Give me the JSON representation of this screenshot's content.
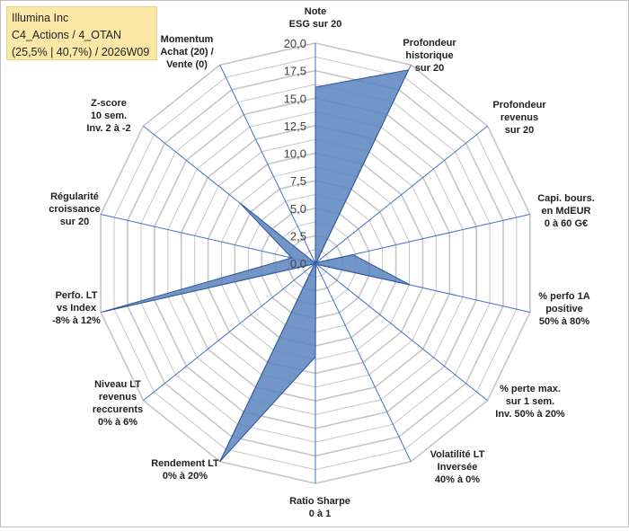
{
  "title_box": {
    "line1": "Illumina Inc",
    "line2": "C4_Actions / 4_OTAN",
    "line3": "(25,5% | 40,7%) / 2026W09"
  },
  "chart_data": {
    "type": "radar",
    "title": "",
    "range": [
      0,
      20
    ],
    "ticks": [
      "0,0",
      "2,5",
      "5,0",
      "7,5",
      "10,0",
      "12,5",
      "15,0",
      "17,5",
      "20,0"
    ],
    "grid": true,
    "legend": "none",
    "colors": {
      "fill": "#5b84c0",
      "stroke": "#2f5597",
      "grid": "#c6c6c6",
      "spoke": "#4472c4"
    },
    "axes": [
      {
        "lines": [
          "Note",
          "ESG sur 20"
        ]
      },
      {
        "lines": [
          "Profondeur",
          "historique",
          "sur 20"
        ]
      },
      {
        "lines": [
          "Profondeur",
          "revenus",
          "sur 20"
        ]
      },
      {
        "lines": [
          "Capi. bours.",
          "en MdEUR",
          "0 à 60 G€"
        ]
      },
      {
        "lines": [
          "% perfo 1A",
          "positive",
          "50% à 80%"
        ]
      },
      {
        "lines": [
          "% perte max.",
          "sur 1 sem.",
          "Inv. 50% à 20%"
        ]
      },
      {
        "lines": [
          "Volatilité LT",
          "Inversée",
          "40% à 0%"
        ]
      },
      {
        "lines": [
          "Ratio Sharpe",
          "0 à 1"
        ]
      },
      {
        "lines": [
          "Rendement LT",
          "0% à 20%"
        ]
      },
      {
        "lines": [
          "Niveau LT",
          "revenus",
          "reccurents",
          "0% à 6%"
        ]
      },
      {
        "lines": [
          "Perfo. LT",
          "vs Index",
          "-8% à 12%"
        ]
      },
      {
        "lines": [
          "Régularité",
          "croissance",
          "sur 20"
        ]
      },
      {
        "lines": [
          "Z-score",
          "10 sem.",
          "Inv. 2 à -2"
        ]
      },
      {
        "lines": [
          "Momentum",
          "Achat (20) /",
          "Vente (0)"
        ]
      }
    ],
    "series": [
      {
        "values": [
          16.0,
          19.5,
          0.1,
          3.5,
          8.8,
          0.2,
          0.1,
          8.5,
          20.0,
          0.1,
          19.8,
          2.2,
          8.8,
          0.0
        ]
      }
    ]
  }
}
